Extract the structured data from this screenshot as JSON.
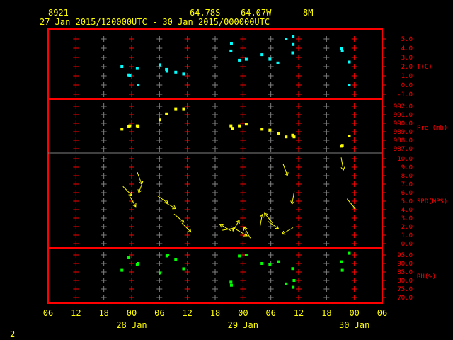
{
  "header": {
    "station": "8921",
    "lat": "64.78S",
    "lon": "64.07W",
    "elev": "8M",
    "period": "27 Jan 2015/120000UTC - 30 Jan 2015/000000UTC"
  },
  "footer": {
    "page": "2"
  },
  "colors": {
    "frame": "#ff0000",
    "grid_gray": "#808080",
    "text": "#ffff00",
    "axis_text": "#ff0000",
    "temp": "#00ffff",
    "pres": "#ffff00",
    "wind": "#ffff00",
    "rh": "#00ff00"
  },
  "chart_data": {
    "type": "scatter",
    "x_unit": "hours since 27 Jan 06UTC",
    "x_range": [
      0,
      72
    ],
    "x_ticks": [
      "06",
      "12",
      "18",
      "00",
      "06",
      "12",
      "18",
      "00",
      "06",
      "12",
      "18",
      "00",
      "06"
    ],
    "date_labels": [
      {
        "hour": 18,
        "label": "28 Jan"
      },
      {
        "hour": 42,
        "label": "29 Jan"
      },
      {
        "hour": 66,
        "label": "30 Jan"
      }
    ],
    "panels": [
      {
        "name": "temperature",
        "label": "T(C)",
        "ylim": [
          -1,
          5
        ],
        "ticks": [
          "5.0",
          "4.0",
          "3.0",
          "2.0",
          "1.0",
          "0.0",
          "-1.0"
        ],
        "tick_values": [
          5,
          4,
          3,
          2,
          1,
          0,
          -1
        ],
        "points": [
          [
            15.9,
            2.0
          ],
          [
            17.4,
            1.1
          ],
          [
            17.6,
            1.0
          ],
          [
            19.2,
            1.8
          ],
          [
            19.4,
            0.0
          ],
          [
            24.1,
            2.2
          ],
          [
            25.5,
            1.7
          ],
          [
            25.6,
            1.5
          ],
          [
            27.5,
            1.4
          ],
          [
            29.2,
            1.2
          ],
          [
            39.5,
            4.5
          ],
          [
            39.4,
            3.7
          ],
          [
            41.2,
            2.7
          ],
          [
            42.7,
            2.8
          ],
          [
            46.1,
            3.3
          ],
          [
            47.8,
            2.8
          ],
          [
            49.5,
            2.4
          ],
          [
            51.3,
            5.0
          ],
          [
            52.8,
            5.3
          ],
          [
            52.8,
            4.4
          ],
          [
            52.7,
            3.5
          ],
          [
            63.2,
            4.0
          ],
          [
            63.4,
            3.7
          ],
          [
            64.9,
            2.5
          ],
          [
            64.9,
            0.0
          ]
        ]
      },
      {
        "name": "pressure",
        "label": "Pre (mb)",
        "ylim": [
          987,
          992
        ],
        "ticks": [
          "992.0",
          "991.0",
          "990.0",
          "989.0",
          "988.0",
          "987.0"
        ],
        "tick_values": [
          992,
          991,
          990,
          989,
          988,
          987
        ],
        "points": [
          [
            15.9,
            989.3
          ],
          [
            17.4,
            989.6
          ],
          [
            17.6,
            989.7
          ],
          [
            19.2,
            989.7
          ],
          [
            19.4,
            989.6
          ],
          [
            24.1,
            990.4
          ],
          [
            25.5,
            991.1
          ],
          [
            27.5,
            991.7
          ],
          [
            29.2,
            991.7
          ],
          [
            39.4,
            989.7
          ],
          [
            39.7,
            989.4
          ],
          [
            41.2,
            989.7
          ],
          [
            42.7,
            989.9
          ],
          [
            46.1,
            989.3
          ],
          [
            47.8,
            989.2
          ],
          [
            49.6,
            988.8
          ],
          [
            51.3,
            988.4
          ],
          [
            52.7,
            988.6
          ],
          [
            53.0,
            988.4
          ],
          [
            63.2,
            987.3
          ],
          [
            63.4,
            987.4
          ],
          [
            64.9,
            988.5
          ]
        ]
      },
      {
        "name": "wind",
        "label": "SPD(MPS)",
        "ylim": [
          0,
          10
        ],
        "ticks": [
          "10.0",
          "9.0",
          "8.0",
          "7.0",
          "6.0",
          "5.0",
          "4.0",
          "3.0",
          "2.0",
          "1.0",
          "0.0"
        ],
        "tick_values": [
          10,
          9,
          8,
          7,
          6,
          5,
          4,
          3,
          2,
          1,
          0
        ],
        "points": [
          [
            17.1,
            6.2,
            135
          ],
          [
            18.2,
            5.0,
            150
          ],
          [
            19.7,
            7.7,
            160
          ],
          [
            20.0,
            6.7,
            200
          ],
          [
            24.7,
            5.2,
            125
          ],
          [
            26.3,
            4.5,
            120
          ],
          [
            28.2,
            3.0,
            130
          ],
          [
            29.8,
            1.9,
            135
          ],
          [
            38.2,
            1.9,
            300
          ],
          [
            38.9,
            1.7,
            80
          ],
          [
            40.5,
            2.1,
            30
          ],
          [
            41.7,
            1.3,
            120
          ],
          [
            42.9,
            1.3,
            330
          ],
          [
            45.9,
            2.7,
            10
          ],
          [
            47.5,
            3.0,
            320
          ],
          [
            48.5,
            2.2,
            125
          ],
          [
            51.1,
            8.7,
            160
          ],
          [
            51.6,
            1.5,
            240
          ],
          [
            52.8,
            5.4,
            190
          ],
          [
            63.4,
            9.4,
            170
          ],
          [
            65.3,
            4.7,
            140
          ]
        ]
      },
      {
        "name": "rh",
        "label": "RH(%)",
        "ylim": [
          70,
          95
        ],
        "ticks": [
          "95.0",
          "90.0",
          "85.0",
          "80.0",
          "75.0",
          "70.0"
        ],
        "tick_values": [
          95,
          90,
          85,
          80,
          75,
          70
        ],
        "points": [
          [
            15.9,
            86
          ],
          [
            17.4,
            93.4
          ],
          [
            19.2,
            89.4
          ],
          [
            19.4,
            90
          ],
          [
            24.1,
            84.4
          ],
          [
            25.6,
            94.4
          ],
          [
            25.8,
            95
          ],
          [
            27.5,
            92.5
          ],
          [
            29.2,
            86.9
          ],
          [
            39.4,
            79
          ],
          [
            39.5,
            77.2
          ],
          [
            41.2,
            94.4
          ],
          [
            42.7,
            95
          ],
          [
            46.1,
            90
          ],
          [
            47.8,
            89.4
          ],
          [
            49.6,
            91
          ],
          [
            51.3,
            78
          ],
          [
            52.7,
            87
          ],
          [
            53.0,
            80
          ],
          [
            52.8,
            76
          ],
          [
            63.2,
            91
          ],
          [
            63.4,
            86
          ],
          [
            64.9,
            96
          ]
        ]
      }
    ]
  }
}
